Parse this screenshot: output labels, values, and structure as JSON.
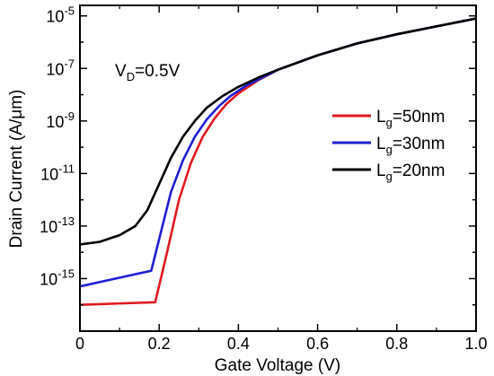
{
  "chart_data": {
    "type": "line",
    "xlabel": "Gate Voltage (V)",
    "ylabel": "Drain Current (A/μm)",
    "xlim": [
      0,
      1.0
    ],
    "ylim_log10": [
      -17,
      -4.6
    ],
    "yscale": "log",
    "grid": false,
    "legend_position": "right",
    "annotation": {
      "main": "V",
      "sub": "D",
      "tail": "=0.5V"
    },
    "x_ticks": [
      {
        "value": 0,
        "label": "0"
      },
      {
        "value": 0.2,
        "label": "0.2"
      },
      {
        "value": 0.4,
        "label": "0.4"
      },
      {
        "value": 0.6,
        "label": "0.6"
      },
      {
        "value": 0.8,
        "label": "0.8"
      },
      {
        "value": 1.0,
        "label": "1.0"
      }
    ],
    "y_ticks": [
      {
        "exp": -15,
        "base": "10",
        "sup": "-15"
      },
      {
        "exp": -13,
        "base": "10",
        "sup": "-13"
      },
      {
        "exp": -11,
        "base": "10",
        "sup": "-11"
      },
      {
        "exp": -9,
        "base": "10",
        "sup": "-9"
      },
      {
        "exp": -7,
        "base": "10",
        "sup": "-7"
      },
      {
        "exp": -5,
        "base": "10",
        "sup": "-5"
      }
    ],
    "series": [
      {
        "name": "Lg=50nm",
        "legend": {
          "main": "L",
          "sub": "g",
          "tail": "=50nm"
        },
        "color": "#e0191f",
        "x": [
          0,
          0.19,
          0.22,
          0.25,
          0.28,
          0.31,
          0.34,
          0.37,
          0.4,
          0.45,
          0.5,
          0.6,
          0.7,
          0.8,
          0.9,
          1.0
        ],
        "log10_y": [
          -16.0,
          -15.9,
          -14.0,
          -12.0,
          -10.6,
          -9.6,
          -8.9,
          -8.35,
          -7.95,
          -7.45,
          -7.05,
          -6.5,
          -6.05,
          -5.7,
          -5.4,
          -5.1
        ]
      },
      {
        "name": "Lg=30nm",
        "legend": {
          "main": "L",
          "sub": "g",
          "tail": "=30nm"
        },
        "color": "#1f1fd6",
        "x": [
          0,
          0.18,
          0.2,
          0.23,
          0.26,
          0.29,
          0.32,
          0.35,
          0.38,
          0.42,
          0.5,
          0.6,
          0.7,
          0.8,
          0.9,
          1.0
        ],
        "log10_y": [
          -15.3,
          -14.7,
          -13.5,
          -11.7,
          -10.5,
          -9.6,
          -8.95,
          -8.45,
          -8.05,
          -7.65,
          -7.05,
          -6.5,
          -6.05,
          -5.7,
          -5.4,
          -5.1
        ]
      },
      {
        "name": "Lg=20nm",
        "legend": {
          "main": "L",
          "sub": "g",
          "tail": "=20nm"
        },
        "color": "#000000",
        "x": [
          0,
          0.05,
          0.1,
          0.14,
          0.17,
          0.2,
          0.23,
          0.26,
          0.29,
          0.32,
          0.36,
          0.4,
          0.45,
          0.5,
          0.6,
          0.7,
          0.8,
          0.9,
          1.0
        ],
        "log10_y": [
          -13.7,
          -13.6,
          -13.35,
          -13.0,
          -12.4,
          -11.4,
          -10.4,
          -9.6,
          -9.0,
          -8.5,
          -8.05,
          -7.7,
          -7.35,
          -7.05,
          -6.5,
          -6.05,
          -5.7,
          -5.4,
          -5.1
        ]
      }
    ]
  }
}
